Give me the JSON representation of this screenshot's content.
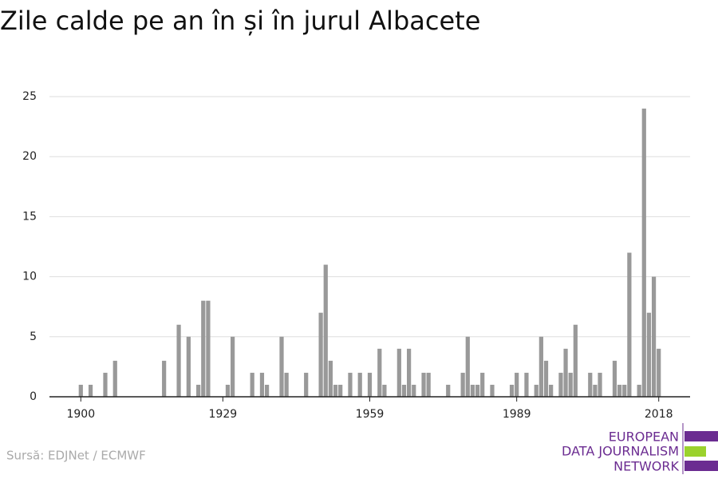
{
  "chart_data": {
    "type": "bar",
    "title": "Zile calde pe an în și în jurul Albacete",
    "source": "Sursă: EDJNet / ECMWF",
    "logo": [
      "EUROPEAN",
      "DATA JOURNALISM",
      "NETWORK"
    ],
    "color": "#999999",
    "x": [
      1900,
      1902,
      1905,
      1907,
      1917,
      1920,
      1922,
      1924,
      1925,
      1926,
      1930,
      1931,
      1935,
      1937,
      1938,
      1941,
      1942,
      1946,
      1949,
      1950,
      1951,
      1952,
      1953,
      1955,
      1957,
      1959,
      1961,
      1962,
      1965,
      1966,
      1967,
      1968,
      1970,
      1971,
      1975,
      1978,
      1979,
      1980,
      1981,
      1982,
      1984,
      1988,
      1989,
      1991,
      1993,
      1994,
      1995,
      1996,
      1998,
      1999,
      2000,
      2001,
      2004,
      2005,
      2006,
      2009,
      2010,
      2011,
      2012,
      2014,
      2015,
      2016,
      2017,
      2018
    ],
    "values": [
      1,
      1,
      2,
      3,
      3,
      6,
      5,
      1,
      8,
      8,
      1,
      5,
      2,
      2,
      1,
      5,
      2,
      2,
      7,
      11,
      3,
      1,
      1,
      2,
      2,
      2,
      4,
      1,
      4,
      1,
      4,
      1,
      2,
      2,
      1,
      2,
      5,
      1,
      1,
      2,
      1,
      1,
      2,
      2,
      1,
      5,
      3,
      1,
      2,
      4,
      2,
      6,
      2,
      1,
      2,
      3,
      1,
      1,
      12,
      1,
      24,
      7,
      10,
      4
    ],
    "xlim": [
      1893.6,
      2024.4
    ],
    "xticks": [
      1900,
      1929,
      1959,
      1989,
      2018
    ],
    "ylim": [
      0,
      25
    ],
    "yticks": [
      0,
      5,
      10,
      15,
      20,
      25
    ],
    "grid": true
  }
}
